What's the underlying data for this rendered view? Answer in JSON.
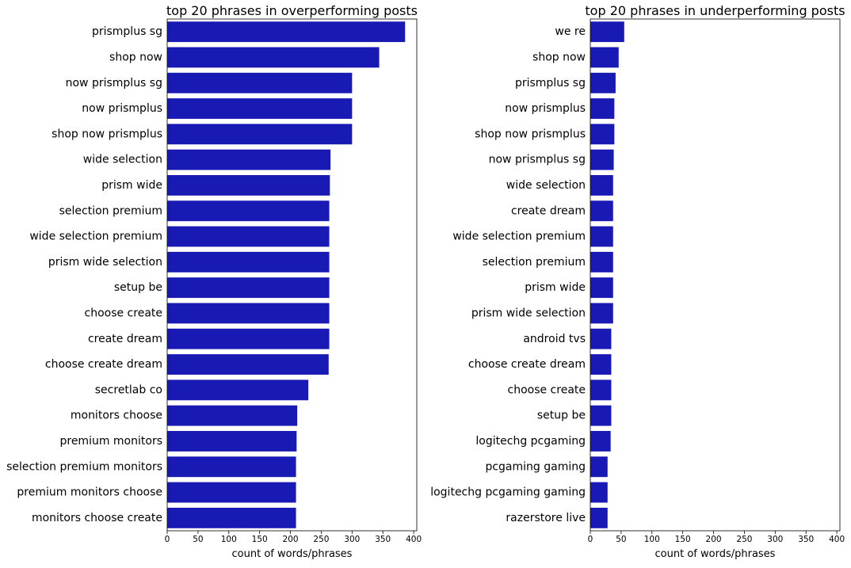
{
  "colors": {
    "bar": "#1919b4",
    "axis": "#000000"
  },
  "chart_data": [
    {
      "type": "bar",
      "orientation": "horizontal",
      "title": "top 20 phrases in overperforming posts",
      "xlabel": "count of words/phrases",
      "ylabel": "",
      "xlim": [
        0,
        405
      ],
      "xticks": [
        0,
        50,
        100,
        150,
        200,
        250,
        300,
        350,
        400
      ],
      "grid": false,
      "categories": [
        "prismplus sg",
        "shop now",
        "now prismplus sg",
        "now prismplus",
        "shop now prismplus",
        "wide selection",
        "prism wide",
        "selection premium",
        "wide selection premium",
        "prism wide selection",
        "setup be",
        "choose create",
        "create dream",
        "choose create dream",
        "secretlab co",
        "monitors choose",
        "premium monitors",
        "selection premium monitors",
        "premium monitors choose",
        "monitors choose create"
      ],
      "values": [
        386,
        344,
        300,
        300,
        300,
        265,
        264,
        263,
        263,
        263,
        263,
        263,
        263,
        262,
        229,
        211,
        210,
        209,
        209,
        209
      ]
    },
    {
      "type": "bar",
      "orientation": "horizontal",
      "title": "top 20 phrases in underperforming posts",
      "xlabel": "count of words/phrases",
      "ylabel": "",
      "xlim": [
        0,
        405
      ],
      "xticks": [
        0,
        50,
        100,
        150,
        200,
        250,
        300,
        350,
        400
      ],
      "grid": false,
      "categories": [
        "we re",
        "shop now",
        "prismplus sg",
        "now prismplus",
        "shop now prismplus",
        "now prismplus sg",
        "wide selection",
        "create dream",
        "wide selection premium",
        "selection premium",
        "prism wide",
        "prism wide selection",
        "android tvs",
        "choose create dream",
        "choose create",
        "setup be",
        "logitechg pcgaming",
        "pcgaming gaming",
        "logitechg pcgaming gaming",
        "razerstore live"
      ],
      "values": [
        55,
        46,
        41,
        39,
        39,
        38,
        37,
        37,
        37,
        37,
        37,
        37,
        34,
        34,
        34,
        34,
        33,
        28,
        28,
        28
      ]
    }
  ]
}
